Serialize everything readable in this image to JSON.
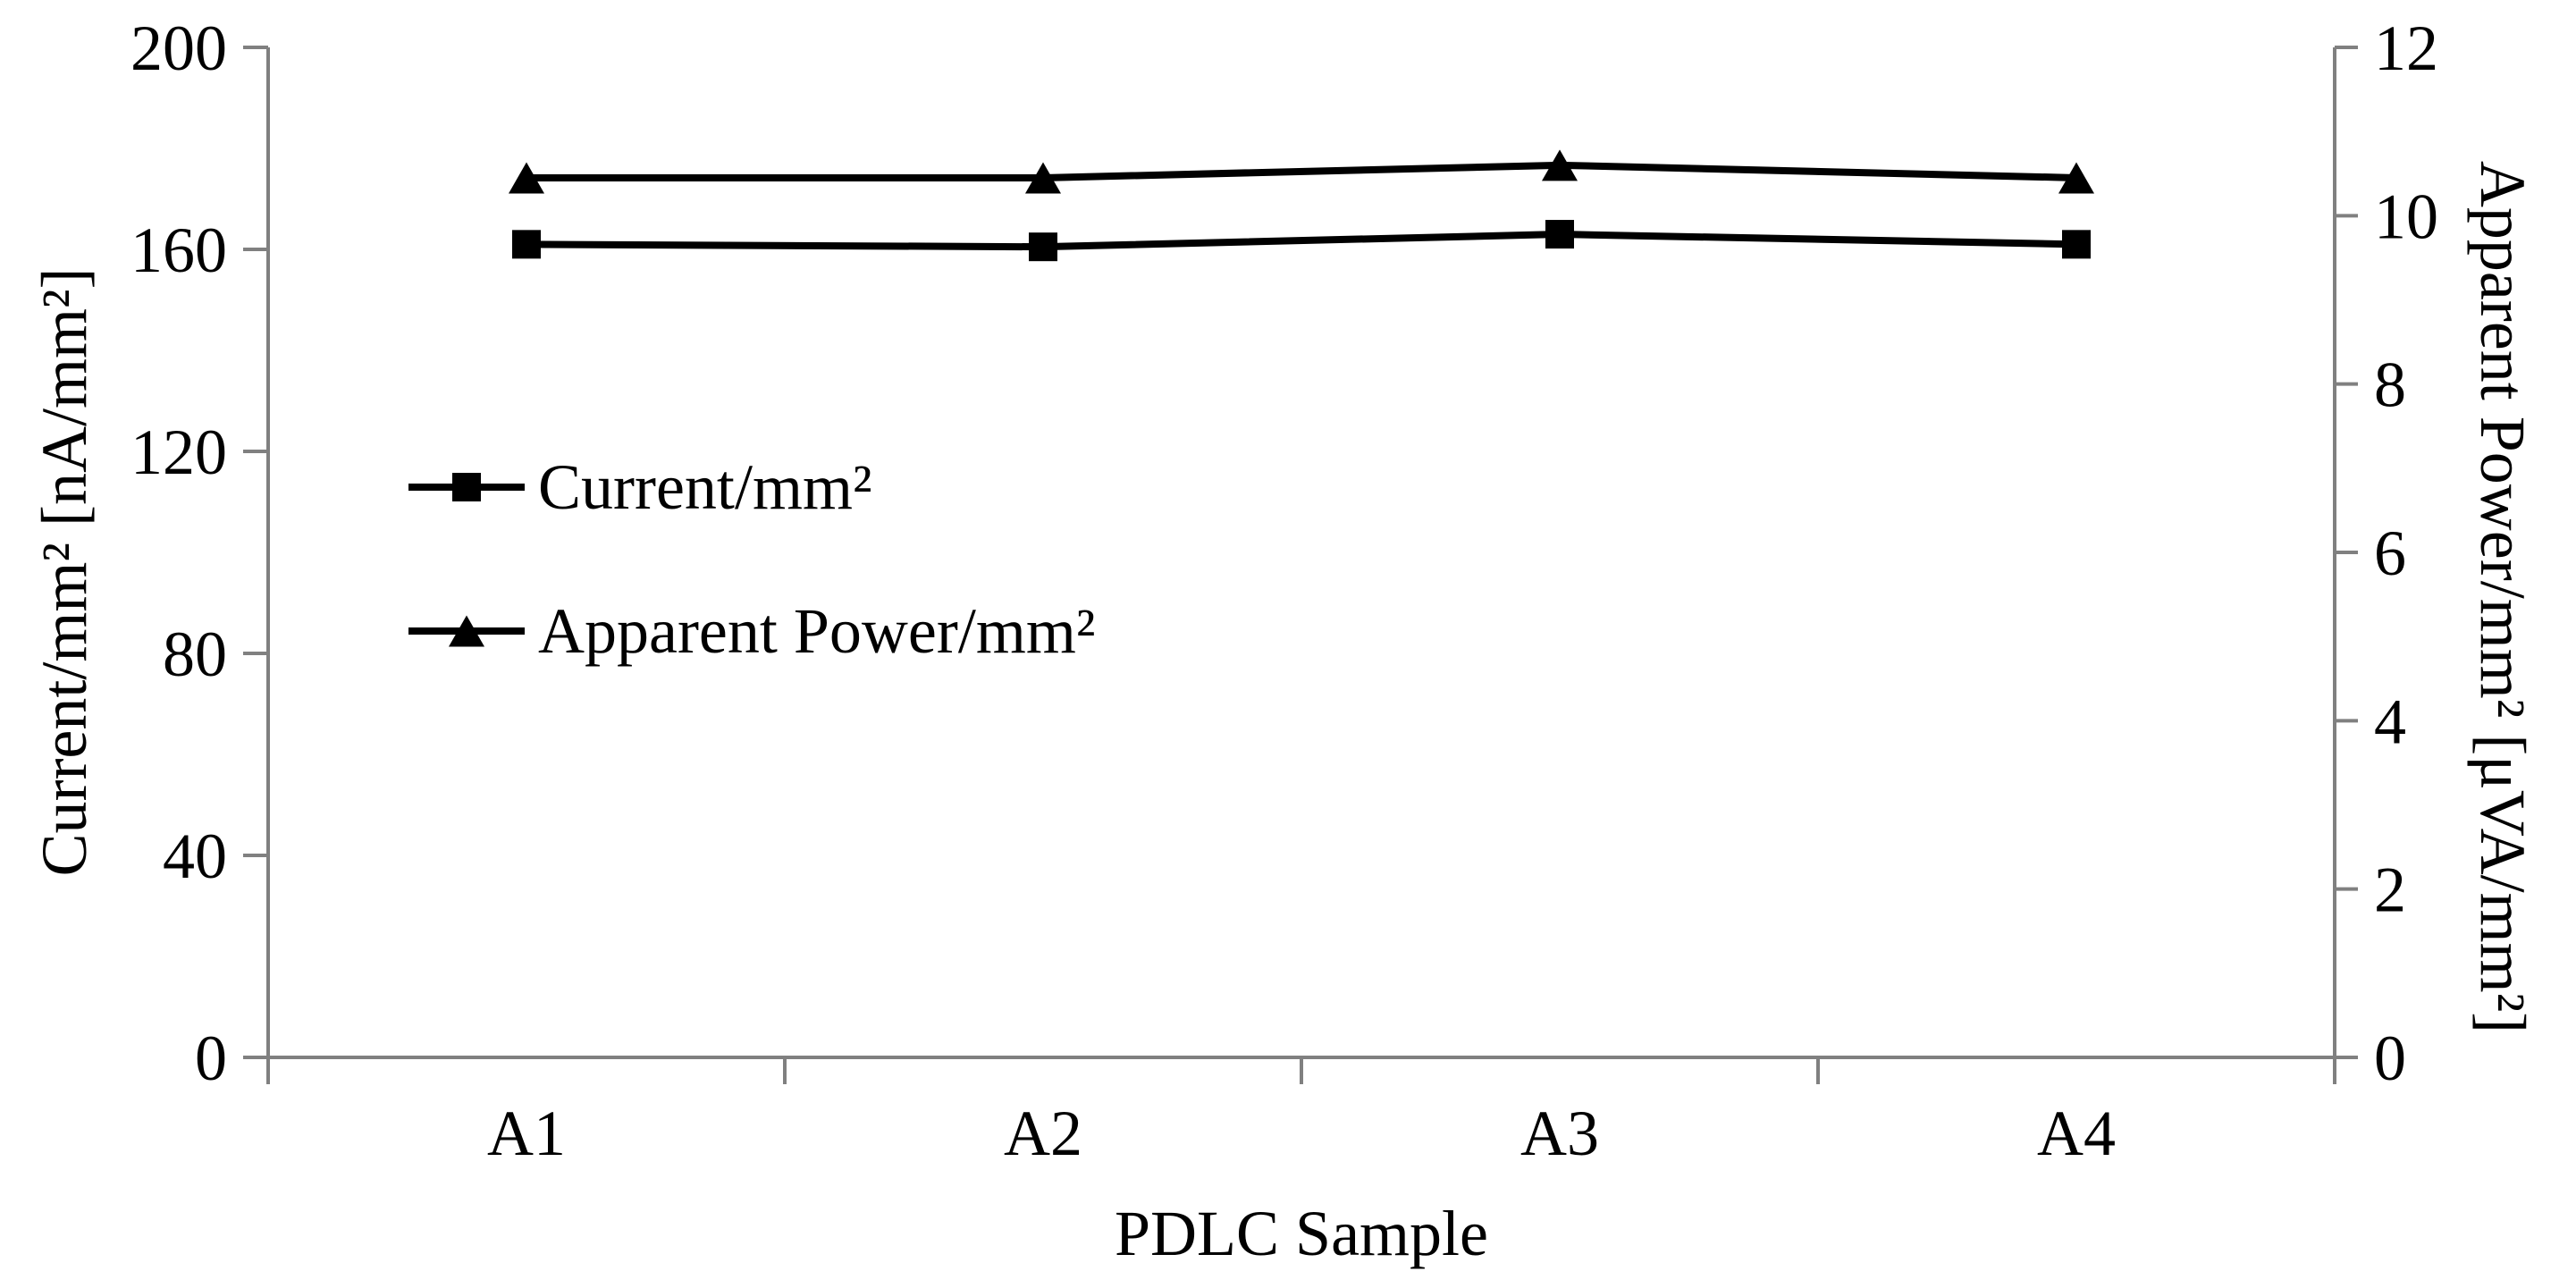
{
  "chart_data": {
    "type": "line",
    "categories": [
      "A1",
      "A2",
      "A3",
      "A4"
    ],
    "series": [
      {
        "name": "Current/mm²",
        "axis": "left",
        "marker": "square",
        "values": [
          161,
          160.5,
          163,
          161
        ]
      },
      {
        "name": "Apparent Power/mm²",
        "axis": "right",
        "marker": "triangle",
        "values": [
          10.45,
          10.45,
          10.6,
          10.45
        ]
      }
    ],
    "xlabel": "PDLC Sample",
    "left_axis": {
      "label": "Current/mm² [nA/mm²]",
      "min": 0,
      "max": 200,
      "ticks": [
        0,
        40,
        80,
        120,
        160,
        200
      ]
    },
    "right_axis": {
      "label": "Apparent Power/mm² [μVA/mm²]",
      "min": 0,
      "max": 12,
      "ticks": [
        0,
        2,
        4,
        6,
        8,
        10,
        12
      ]
    },
    "legend_position": "inside-upper-left",
    "grid": false,
    "colors": {
      "series": "#000000",
      "axis": "#808080",
      "background": "#ffffff",
      "text": "#000000"
    }
  }
}
